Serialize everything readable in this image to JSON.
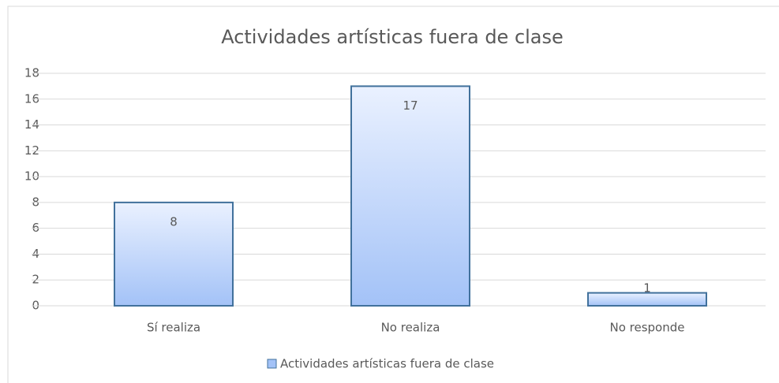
{
  "chart_data": {
    "type": "bar",
    "title": "Actividades artísticas fuera de clase",
    "categories": [
      "Sí realiza",
      "No realiza",
      "No responde"
    ],
    "series": [
      {
        "name": "Actividades artísticas fuera de clase",
        "color": "#a3c2f7",
        "values": [
          8,
          17,
          1
        ]
      }
    ],
    "ylim": [
      0,
      18
    ],
    "yticks": [
      0,
      2,
      4,
      6,
      8,
      10,
      12,
      14,
      16,
      18
    ],
    "grid": true,
    "legend": "bottom"
  }
}
